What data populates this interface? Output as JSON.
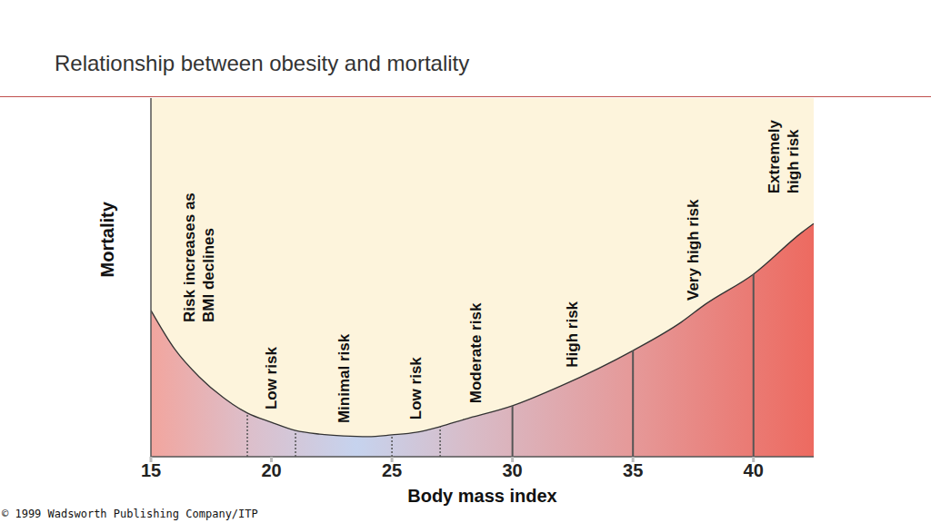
{
  "chart_data": {
    "type": "area",
    "title": "Relationship between obesity and mortality",
    "x_label": "Body mass index",
    "y_label": "Mortality",
    "copyright": "© 1999 Wadsworth Publishing Company/ITP",
    "x": [
      15,
      16,
      17,
      18,
      19,
      20,
      21,
      22,
      23,
      24,
      25,
      26,
      27,
      28,
      30,
      32,
      35,
      37,
      38,
      40,
      42,
      42.5
    ],
    "values": [
      40.8,
      29.9,
      22.3,
      16.5,
      12.2,
      9.6,
      7.3,
      6.3,
      5.8,
      5.6,
      6.1,
      6.8,
      8.4,
      10.4,
      14.2,
      19.7,
      29.6,
      37.5,
      42.5,
      50.9,
      62.5,
      65
    ],
    "xlim": [
      15,
      42.5
    ],
    "xticks": [
      15,
      20,
      25,
      30,
      35,
      40
    ],
    "ylim": [
      0,
      100
    ],
    "yticks": [],
    "tick_labels": "x",
    "color": "#333333",
    "boundaries": [
      {
        "x": 19,
        "line_style": "dotted"
      },
      {
        "x": 21,
        "line_style": "dotted"
      },
      {
        "x": 25,
        "line_style": "dotted"
      },
      {
        "x": 27,
        "line_style": "dotted"
      },
      {
        "x": 30,
        "line_style": "solid"
      },
      {
        "x": 35,
        "line_style": "solid"
      },
      {
        "x": 40,
        "line_style": "solid"
      }
    ],
    "zones": [
      {
        "lines": [
          "Risk increases as",
          "BMI declines"
        ],
        "from": 15,
        "to": 19
      },
      {
        "lines": [
          "Low risk"
        ],
        "from": 19,
        "to": 21
      },
      {
        "lines": [
          "Minimal risk"
        ],
        "from": 21,
        "to": 25
      },
      {
        "lines": [
          "Low risk"
        ],
        "from": 25,
        "to": 27
      },
      {
        "lines": [
          "Moderate risk"
        ],
        "from": 27,
        "to": 30
      },
      {
        "lines": [
          "High risk"
        ],
        "from": 30,
        "to": 35
      },
      {
        "lines": [
          "Very high risk"
        ],
        "from": 35,
        "to": 40
      },
      {
        "lines": [
          "Extremely",
          "high risk"
        ],
        "from": 40,
        "to": 42.5
      }
    ]
  }
}
